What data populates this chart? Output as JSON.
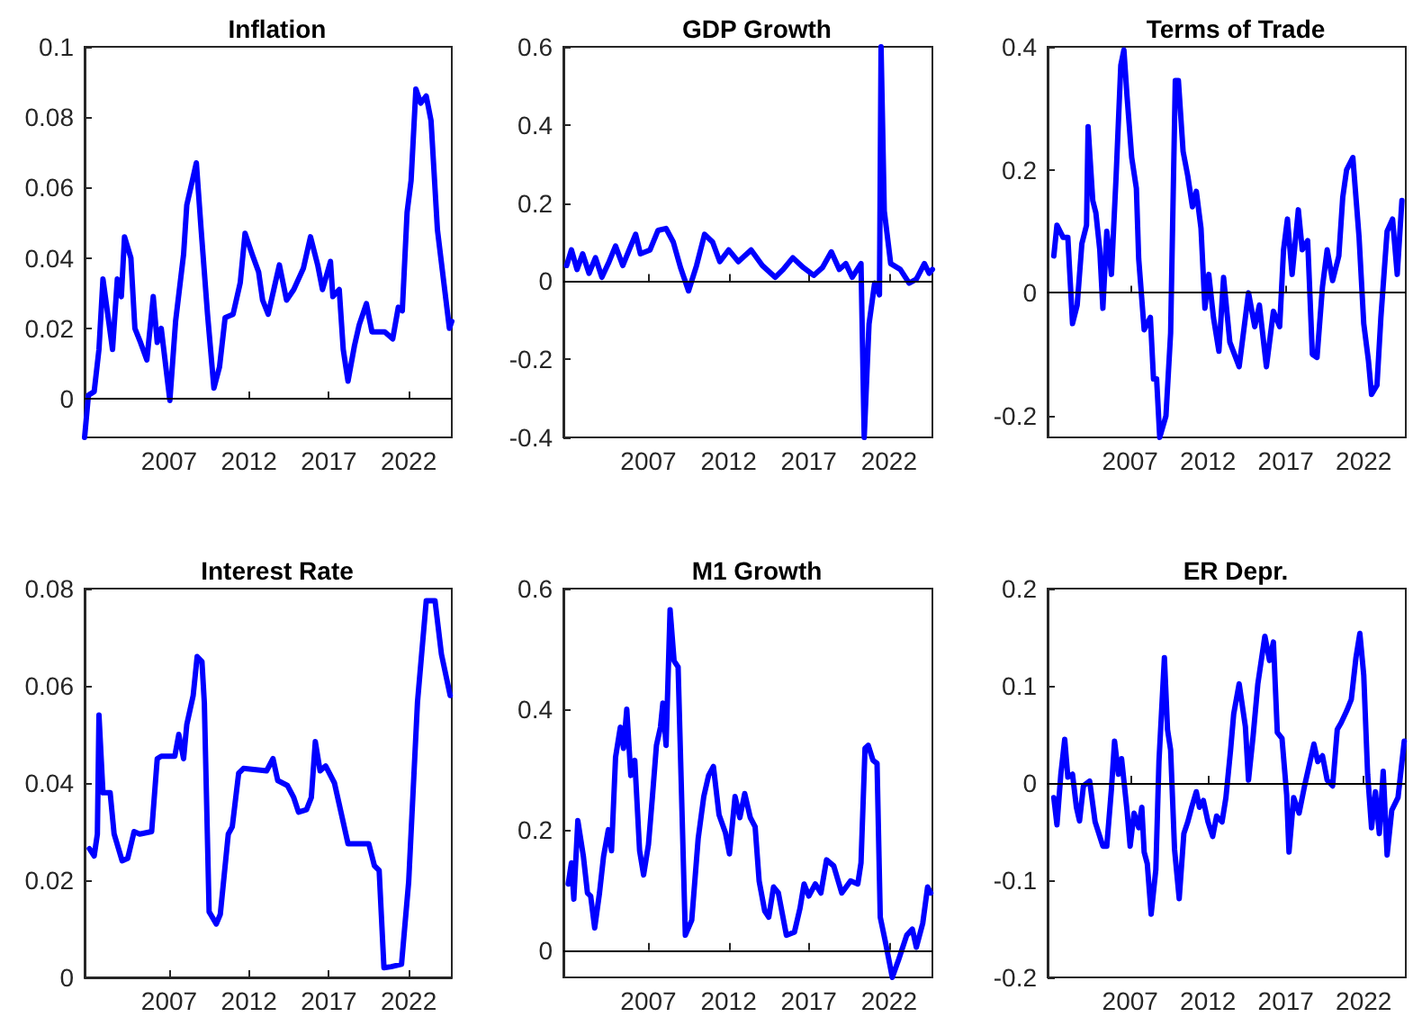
{
  "chart_data": [
    {
      "type": "line",
      "title": "Inflation",
      "color": "#0000ff",
      "xlim": [
        2001.7,
        2024.7
      ],
      "xticks": [
        2007,
        2012,
        2017,
        2022
      ],
      "ylim": [
        -0.011,
        0.1
      ],
      "yticks": [
        0,
        0.02,
        0.04,
        0.06,
        0.08,
        0.1
      ],
      "ref_lines": [
        {
          "axis": "y",
          "value": 0,
          "color": "#000000"
        }
      ],
      "x": [
        2001.7,
        2001.94,
        2002.3,
        2002.6,
        2002.85,
        2003.15,
        2003.45,
        2003.75,
        2004.0,
        2004.2,
        2004.6,
        2004.85,
        2005.2,
        2005.6,
        2006.0,
        2006.25,
        2006.5,
        2007.04,
        2007.4,
        2007.9,
        2008.1,
        2008.45,
        2008.7,
        2009.0,
        2009.4,
        2009.8,
        2010.15,
        2010.5,
        2011.0,
        2011.45,
        2011.75,
        2012.2,
        2012.6,
        2012.85,
        2013.2,
        2013.55,
        2013.9,
        2014.35,
        2014.8,
        2015.4,
        2015.85,
        2016.3,
        2016.6,
        2017.1,
        2017.25,
        2017.65,
        2017.9,
        2018.2,
        2018.6,
        2018.9,
        2019.35,
        2019.7,
        2020.5,
        2021.0,
        2021.35,
        2021.6,
        2021.9,
        2022.15,
        2022.45,
        2022.75,
        2023.1,
        2023.4,
        2023.8,
        2024.2,
        2024.55,
        2024.7
      ],
      "values": [
        -0.011,
        0.001,
        0.002,
        0.014,
        0.034,
        0.024,
        0.014,
        0.034,
        0.029,
        0.046,
        0.04,
        0.02,
        0.016,
        0.011,
        0.029,
        0.016,
        0.02,
        -0.0005,
        0.022,
        0.041,
        0.055,
        0.062,
        0.067,
        0.048,
        0.024,
        0.003,
        0.009,
        0.023,
        0.024,
        0.033,
        0.047,
        0.041,
        0.036,
        0.028,
        0.024,
        0.031,
        0.038,
        0.028,
        0.031,
        0.037,
        0.046,
        0.038,
        0.031,
        0.039,
        0.029,
        0.031,
        0.014,
        0.005,
        0.015,
        0.021,
        0.027,
        0.019,
        0.019,
        0.017,
        0.026,
        0.025,
        0.053,
        0.062,
        0.088,
        0.084,
        0.086,
        0.079,
        0.048,
        0.033,
        0.02,
        0.022
      ]
    },
    {
      "type": "line",
      "title": "GDP Growth",
      "color": "#0000ff",
      "xlim": [
        2001.7,
        2024.7
      ],
      "xticks": [
        2007,
        2012,
        2017,
        2022
      ],
      "ylim": [
        -0.4,
        0.6
      ],
      "yticks": [
        -0.4,
        -0.2,
        0,
        0.2,
        0.4,
        0.6
      ],
      "ref_lines": [
        {
          "axis": "y",
          "value": 0,
          "color": "#000000"
        }
      ],
      "x": [
        2001.9,
        2002.2,
        2002.55,
        2002.9,
        2003.3,
        2003.7,
        2004.1,
        2004.55,
        2004.95,
        2005.4,
        2005.8,
        2006.2,
        2006.5,
        2007.1,
        2007.6,
        2008.1,
        2008.55,
        2009.0,
        2009.5,
        2010.0,
        2010.5,
        2011.0,
        2011.45,
        2012.0,
        2012.6,
        2013.4,
        2014.1,
        2014.9,
        2015.4,
        2016.0,
        2016.65,
        2017.3,
        2017.85,
        2018.4,
        2018.9,
        2019.3,
        2019.7,
        2020.25,
        2020.45,
        2020.75,
        2021.1,
        2021.4,
        2021.5,
        2021.7,
        2022.1,
        2022.7,
        2023.25,
        2023.7,
        2024.2,
        2024.5,
        2024.7
      ],
      "values": [
        0.04,
        0.08,
        0.03,
        0.07,
        0.02,
        0.06,
        0.01,
        0.05,
        0.09,
        0.04,
        0.08,
        0.12,
        0.07,
        0.08,
        0.13,
        0.135,
        0.1,
        0.035,
        -0.025,
        0.04,
        0.12,
        0.1,
        0.05,
        0.08,
        0.05,
        0.08,
        0.04,
        0.01,
        0.03,
        0.06,
        0.035,
        0.015,
        0.035,
        0.075,
        0.03,
        0.045,
        0.01,
        0.045,
        -0.4,
        -0.11,
        -0.005,
        -0.035,
        0.6,
        0.18,
        0.045,
        0.03,
        -0.005,
        0.005,
        0.045,
        0.02,
        0.03
      ]
    },
    {
      "type": "line",
      "title": "Terms of Trade",
      "color": "#0000ff",
      "xlim": [
        2001.7,
        2024.7
      ],
      "xticks": [
        2007,
        2012,
        2017,
        2022
      ],
      "ylim": [
        -0.235,
        0.4
      ],
      "yticks": [
        -0.2,
        0,
        0.2,
        0.4
      ],
      "ref_lines": [
        {
          "axis": "y",
          "value": 0,
          "color": "#000000"
        }
      ],
      "x": [
        2002.1,
        2002.3,
        2002.7,
        2003.0,
        2003.3,
        2003.6,
        2003.9,
        2004.2,
        2004.3,
        2004.6,
        2004.8,
        2005.05,
        2005.25,
        2005.5,
        2005.8,
        2006.1,
        2006.4,
        2006.6,
        2006.8,
        2007.1,
        2007.4,
        2007.55,
        2007.9,
        2008.3,
        2008.5,
        2008.7,
        2008.9,
        2009.3,
        2009.6,
        2009.9,
        2010.1,
        2010.4,
        2010.7,
        2011.0,
        2011.25,
        2011.55,
        2011.8,
        2012.05,
        2012.35,
        2012.7,
        2013.0,
        2013.4,
        2014.0,
        2014.6,
        2015.0,
        2015.3,
        2015.75,
        2016.2,
        2016.6,
        2016.85,
        2017.1,
        2017.4,
        2017.8,
        2018.05,
        2018.4,
        2018.7,
        2019.0,
        2019.35,
        2019.65,
        2020.0,
        2020.4,
        2020.65,
        2020.9,
        2021.3,
        2021.7,
        2022.0,
        2022.3,
        2022.5,
        2022.85,
        2023.1,
        2023.5,
        2023.85,
        2024.15,
        2024.45
      ],
      "values": [
        0.06,
        0.11,
        0.09,
        0.09,
        -0.05,
        -0.02,
        0.08,
        0.11,
        0.27,
        0.15,
        0.13,
        0.07,
        -0.025,
        0.1,
        0.03,
        0.19,
        0.37,
        0.395,
        0.32,
        0.22,
        0.17,
        0.055,
        -0.06,
        -0.04,
        -0.14,
        -0.14,
        -0.235,
        -0.2,
        -0.065,
        0.345,
        0.345,
        0.23,
        0.19,
        0.14,
        0.165,
        0.105,
        -0.025,
        0.03,
        -0.04,
        -0.095,
        0.025,
        -0.08,
        -0.12,
        0.0,
        -0.055,
        -0.02,
        -0.12,
        -0.03,
        -0.055,
        0.07,
        0.12,
        0.03,
        0.135,
        0.07,
        0.085,
        -0.1,
        -0.105,
        0.01,
        0.07,
        0.02,
        0.06,
        0.155,
        0.2,
        0.22,
        0.09,
        -0.05,
        -0.11,
        -0.165,
        -0.15,
        -0.04,
        0.1,
        0.12,
        0.03,
        0.15
      ]
    },
    {
      "type": "line",
      "title": "Interest Rate",
      "color": "#0000ff",
      "xlim": [
        2001.7,
        2024.7
      ],
      "xticks": [
        2007,
        2012,
        2017,
        2022
      ],
      "ylim": [
        0,
        0.08
      ],
      "yticks": [
        0,
        0.02,
        0.04,
        0.06,
        0.08
      ],
      "x": [
        2002.0,
        2002.3,
        2002.5,
        2002.6,
        2002.85,
        2003.3,
        2003.55,
        2004.05,
        2004.4,
        2004.8,
        2005.15,
        2005.9,
        2006.25,
        2006.5,
        2007.35,
        2007.6,
        2007.9,
        2008.1,
        2008.5,
        2008.75,
        2009.05,
        2009.2,
        2009.5,
        2009.95,
        2010.2,
        2010.7,
        2010.95,
        2011.35,
        2011.65,
        2013.1,
        2013.5,
        2013.8,
        2014.4,
        2014.8,
        2015.1,
        2015.6,
        2015.9,
        2016.15,
        2016.45,
        2016.8,
        2017.35,
        2018.2,
        2019.5,
        2019.85,
        2020.15,
        2020.45,
        2020.9,
        2021.55,
        2022.0,
        2022.55,
        2023.1,
        2023.65,
        2024.05,
        2024.6
      ],
      "values": [
        0.0265,
        0.025,
        0.0295,
        0.054,
        0.038,
        0.038,
        0.0295,
        0.024,
        0.0245,
        0.03,
        0.0295,
        0.03,
        0.045,
        0.0455,
        0.0455,
        0.05,
        0.045,
        0.052,
        0.058,
        0.066,
        0.065,
        0.0565,
        0.0135,
        0.011,
        0.013,
        0.0295,
        0.031,
        0.042,
        0.043,
        0.0425,
        0.045,
        0.0405,
        0.0395,
        0.037,
        0.034,
        0.0345,
        0.037,
        0.0485,
        0.0425,
        0.0435,
        0.04,
        0.0275,
        0.0275,
        0.023,
        0.022,
        0.002,
        0.0022,
        0.0027,
        0.0197,
        0.0566,
        0.0775,
        0.0775,
        0.0665,
        0.058
      ]
    },
    {
      "type": "line",
      "title": "M1 Growth",
      "color": "#0000ff",
      "xlim": [
        2001.7,
        2024.7
      ],
      "xticks": [
        2007,
        2012,
        2017,
        2022
      ],
      "ylim": [
        -0.045,
        0.6
      ],
      "yticks": [
        0,
        0.2,
        0.4,
        0.6
      ],
      "ref_lines": [
        {
          "axis": "y",
          "value": 0,
          "color": "#000000"
        }
      ],
      "x": [
        2002.0,
        2002.2,
        2002.35,
        2002.6,
        2002.95,
        2003.2,
        2003.4,
        2003.65,
        2003.95,
        2004.2,
        2004.5,
        2004.7,
        2004.95,
        2005.25,
        2005.45,
        2005.65,
        2005.9,
        2006.15,
        2006.45,
        2006.7,
        2007.0,
        2007.25,
        2007.5,
        2007.75,
        2007.9,
        2008.1,
        2008.35,
        2008.6,
        2008.85,
        2009.3,
        2009.7,
        2010.1,
        2010.45,
        2010.75,
        2011.05,
        2011.4,
        2011.8,
        2012.05,
        2012.4,
        2012.7,
        2013.0,
        2013.35,
        2013.65,
        2013.9,
        2014.25,
        2014.5,
        2014.8,
        2015.1,
        2015.6,
        2016.1,
        2016.45,
        2016.7,
        2017.0,
        2017.4,
        2017.75,
        2018.1,
        2018.55,
        2019.05,
        2019.6,
        2020.05,
        2020.25,
        2020.5,
        2020.7,
        2021.0,
        2021.25,
        2021.45,
        2021.8,
        2022.2,
        2022.6,
        2023.1,
        2023.45,
        2023.7,
        2024.1,
        2024.4,
        2024.6
      ],
      "values": [
        0.11,
        0.145,
        0.085,
        0.215,
        0.155,
        0.095,
        0.09,
        0.037,
        0.095,
        0.155,
        0.2,
        0.165,
        0.32,
        0.37,
        0.335,
        0.4,
        0.29,
        0.315,
        0.165,
        0.125,
        0.175,
        0.255,
        0.34,
        0.37,
        0.41,
        0.34,
        0.565,
        0.48,
        0.47,
        0.025,
        0.05,
        0.185,
        0.255,
        0.29,
        0.305,
        0.225,
        0.195,
        0.16,
        0.255,
        0.22,
        0.26,
        0.22,
        0.205,
        0.115,
        0.065,
        0.055,
        0.105,
        0.095,
        0.025,
        0.03,
        0.07,
        0.11,
        0.09,
        0.11,
        0.095,
        0.15,
        0.14,
        0.095,
        0.115,
        0.11,
        0.145,
        0.335,
        0.34,
        0.315,
        0.31,
        0.055,
        0.01,
        -0.045,
        -0.015,
        0.025,
        0.035,
        0.005,
        0.045,
        0.105,
        0.095
      ]
    },
    {
      "type": "line",
      "title": "ER Depr.",
      "color": "#0000ff",
      "xlim": [
        2001.7,
        2024.7
      ],
      "xticks": [
        2007,
        2012,
        2017,
        2022
      ],
      "ylim": [
        -0.2,
        0.2
      ],
      "yticks": [
        -0.2,
        -0.1,
        0,
        0.1,
        0.2
      ],
      "ref_lines": [
        {
          "axis": "y",
          "value": 0,
          "color": "#000000"
        }
      ],
      "x": [
        2002.1,
        2002.3,
        2002.55,
        2002.8,
        2003.0,
        2003.3,
        2003.55,
        2003.75,
        2004.0,
        2004.4,
        2004.75,
        2005.25,
        2005.5,
        2005.8,
        2006.0,
        2006.25,
        2006.45,
        2006.8,
        2007.0,
        2007.25,
        2007.55,
        2007.75,
        2007.9,
        2008.1,
        2008.35,
        2008.65,
        2008.85,
        2009.2,
        2009.4,
        2009.6,
        2009.85,
        2010.15,
        2010.45,
        2010.7,
        2010.95,
        2011.25,
        2011.45,
        2011.7,
        2012.0,
        2012.3,
        2012.55,
        2012.9,
        2013.15,
        2013.45,
        2013.65,
        2014.0,
        2014.4,
        2014.6,
        2014.9,
        2015.2,
        2015.65,
        2015.95,
        2016.2,
        2016.45,
        2016.75,
        2017.05,
        2017.2,
        2017.5,
        2017.85,
        2018.2,
        2018.8,
        2019.05,
        2019.35,
        2019.65,
        2020.0,
        2020.3,
        2020.55,
        2020.9,
        2021.2,
        2021.5,
        2021.75,
        2022.0,
        2022.25,
        2022.5,
        2022.75,
        2023.0,
        2023.25,
        2023.5,
        2023.8,
        2024.2,
        2024.6
      ],
      "values": [
        -0.015,
        -0.043,
        0.009,
        0.045,
        0.006,
        0.009,
        -0.025,
        -0.039,
        -0.003,
        0.002,
        -0.04,
        -0.065,
        -0.065,
        -0.006,
        0.043,
        0.009,
        0.025,
        -0.028,
        -0.065,
        -0.031,
        -0.046,
        -0.025,
        -0.071,
        -0.083,
        -0.135,
        -0.089,
        0.022,
        0.129,
        0.055,
        0.034,
        -0.068,
        -0.119,
        -0.052,
        -0.04,
        -0.025,
        -0.009,
        -0.025,
        -0.018,
        -0.04,
        -0.055,
        -0.034,
        -0.04,
        -0.015,
        0.034,
        0.071,
        0.102,
        0.058,
        0.003,
        0.049,
        0.102,
        0.151,
        0.126,
        0.145,
        0.052,
        0.046,
        -0.012,
        -0.071,
        -0.015,
        -0.031,
        -0.003,
        0.04,
        0.022,
        0.028,
        0.003,
        -0.003,
        0.055,
        0.062,
        0.074,
        0.086,
        0.129,
        0.154,
        0.111,
        0.009,
        -0.046,
        -0.009,
        -0.052,
        0.012,
        -0.074,
        -0.028,
        -0.015,
        0.043
      ]
    }
  ]
}
